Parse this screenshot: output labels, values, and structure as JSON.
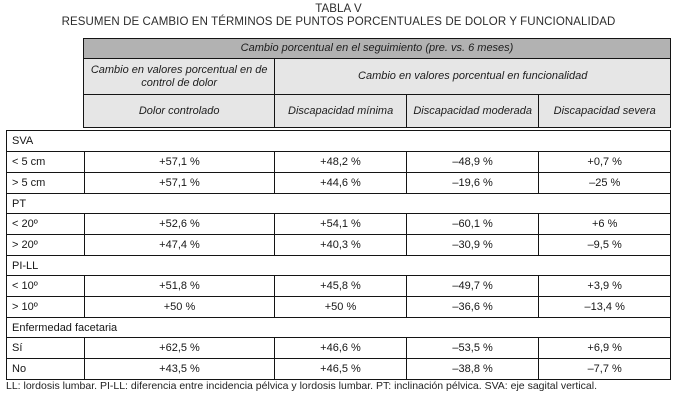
{
  "title": "TABLA V",
  "subtitle": "RESUMEN DE CAMBIO EN TÉRMINOS DE PUNTOS PORCENTUALES DE DOLOR Y FUNCIONALIDAD",
  "header": {
    "top": "Cambio porcentual en el seguimiento (pre. vs. 6 meses)",
    "group_pain": "Cambio en valores porcentual en de control de dolor",
    "group_function": "Cambio en valores porcentual en  funcionalidad",
    "col_pain": "Dolor controlado",
    "col_min": "Discapacidad mínima",
    "col_mod": "Discapacidad moderada",
    "col_sev": "Discapacidad severa"
  },
  "sections": [
    {
      "label": "SVA",
      "rows": [
        {
          "label": "< 5 cm",
          "values": [
            "+57,1 %",
            "+48,2 %",
            "–48,9 %",
            "+0,7 %"
          ]
        },
        {
          "label": "> 5 cm",
          "values": [
            "+57,1 %",
            "+44,6 %",
            "–19,6 %",
            "–25 %"
          ]
        }
      ]
    },
    {
      "label": "PT",
      "rows": [
        {
          "label": "< 20º",
          "values": [
            "+52,6 %",
            "+54,1 %",
            "–60,1 %",
            "+6 %"
          ]
        },
        {
          "label": "> 20º",
          "values": [
            "+47,4 %",
            "+40,3 %",
            "–30,9 %",
            "–9,5 %"
          ]
        }
      ]
    },
    {
      "label": "PI-LL",
      "rows": [
        {
          "label": "< 10º",
          "values": [
            "+51,8 %",
            "+45,8 %",
            "–49,7 %",
            "+3,9 %"
          ]
        },
        {
          "label": "> 10º",
          "values": [
            "+50 %",
            "+50 %",
            "–36,6 %",
            "–13,4 %"
          ]
        }
      ]
    },
    {
      "label": "Enfermedad facetaria",
      "rows": [
        {
          "label": "Sí",
          "values": [
            "+62,5 %",
            "+46,6 %",
            "–53,5 %",
            "+6,9 %"
          ]
        },
        {
          "label": "No",
          "values": [
            "+43,5 %",
            "+46,5 %",
            "–38,8 %",
            "–7,7 %"
          ]
        }
      ]
    }
  ],
  "footnote": "LL: lordosis lumbar. PI-LL: diferencia entre incidencia pélvica y lordosis lumbar. PT: inclinación pélvica. SVA: eje sagital vertical.",
  "colors": {
    "header_dark": "#b2b2b2",
    "header_light": "#e6e6e6",
    "border": "#141414",
    "text": "#1c1c1c"
  }
}
